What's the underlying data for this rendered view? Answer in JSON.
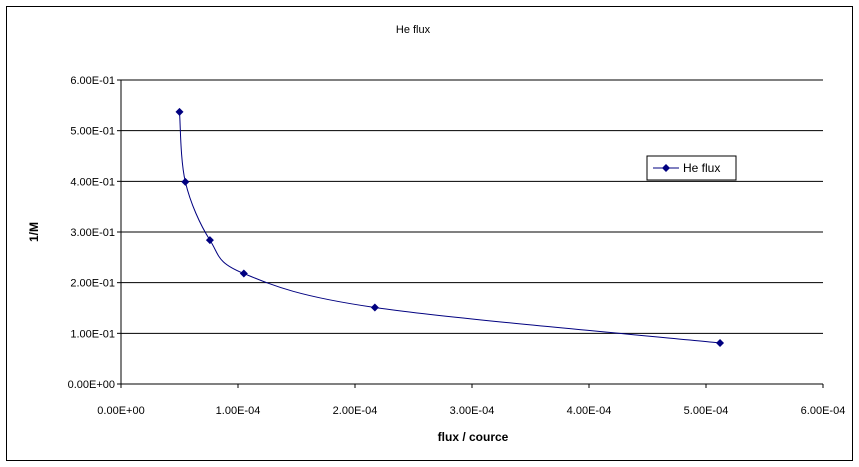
{
  "chart_data": {
    "type": "line",
    "title": "He flux",
    "xlabel": "flux / cource",
    "ylabel": "1/M",
    "xlim": [
      0,
      0.0006
    ],
    "ylim": [
      0,
      0.6
    ],
    "x_ticks": [
      "0.00E+00",
      "1.00E-04",
      "2.00E-04",
      "3.00E-04",
      "4.00E-04",
      "5.00E-04",
      "6.00E-04"
    ],
    "y_ticks": [
      "0.00E+00",
      "1.00E-01",
      "2.00E-01",
      "3.00E-01",
      "4.00E-01",
      "5.00E-01",
      "6.00E-01"
    ],
    "x_tick_values": [
      0,
      0.0001,
      0.0002,
      0.0003,
      0.0004,
      0.0005,
      0.0006
    ],
    "y_tick_values": [
      0,
      0.1,
      0.2,
      0.3,
      0.4,
      0.5,
      0.6
    ],
    "grid": "horizontal",
    "legend_position": "right",
    "series": [
      {
        "name": "He flux",
        "color": "#000080",
        "marker": "diamond",
        "smooth": true,
        "x": [
          5e-05,
          5.5e-05,
          7.6e-05,
          0.000105,
          0.000217,
          0.000512
        ],
        "y": [
          0.537,
          0.399,
          0.284,
          0.218,
          0.151,
          0.081
        ]
      }
    ]
  }
}
